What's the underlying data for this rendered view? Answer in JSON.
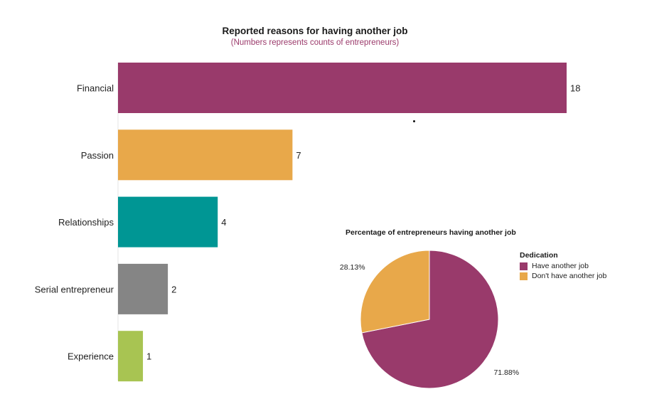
{
  "chart_data": [
    {
      "type": "bar",
      "orientation": "horizontal",
      "title": "Reported reasons for having another job",
      "subtitle": "(Numbers represents counts of entrepreneurs)",
      "categories": [
        "Financial",
        "Passion",
        "Relationships",
        "Serial entrepreneur",
        "Experience"
      ],
      "values": [
        18,
        7,
        4,
        2,
        1
      ],
      "colors": [
        "#993a6b",
        "#e8a84a",
        "#009694",
        "#858585",
        "#a8c452"
      ],
      "xlim": [
        0,
        18
      ],
      "grid": false
    },
    {
      "type": "pie",
      "title": "Percentage of entrepreneurs having another job",
      "legend_title": "Dedication",
      "legend_position": "right",
      "slices": [
        {
          "label": "Have another job",
          "value": 71.88,
          "display": "71.88%",
          "color": "#993a6b"
        },
        {
          "label": "Don't have another job",
          "value": 28.13,
          "display": "28.13%",
          "color": "#e8a84a"
        }
      ]
    }
  ]
}
